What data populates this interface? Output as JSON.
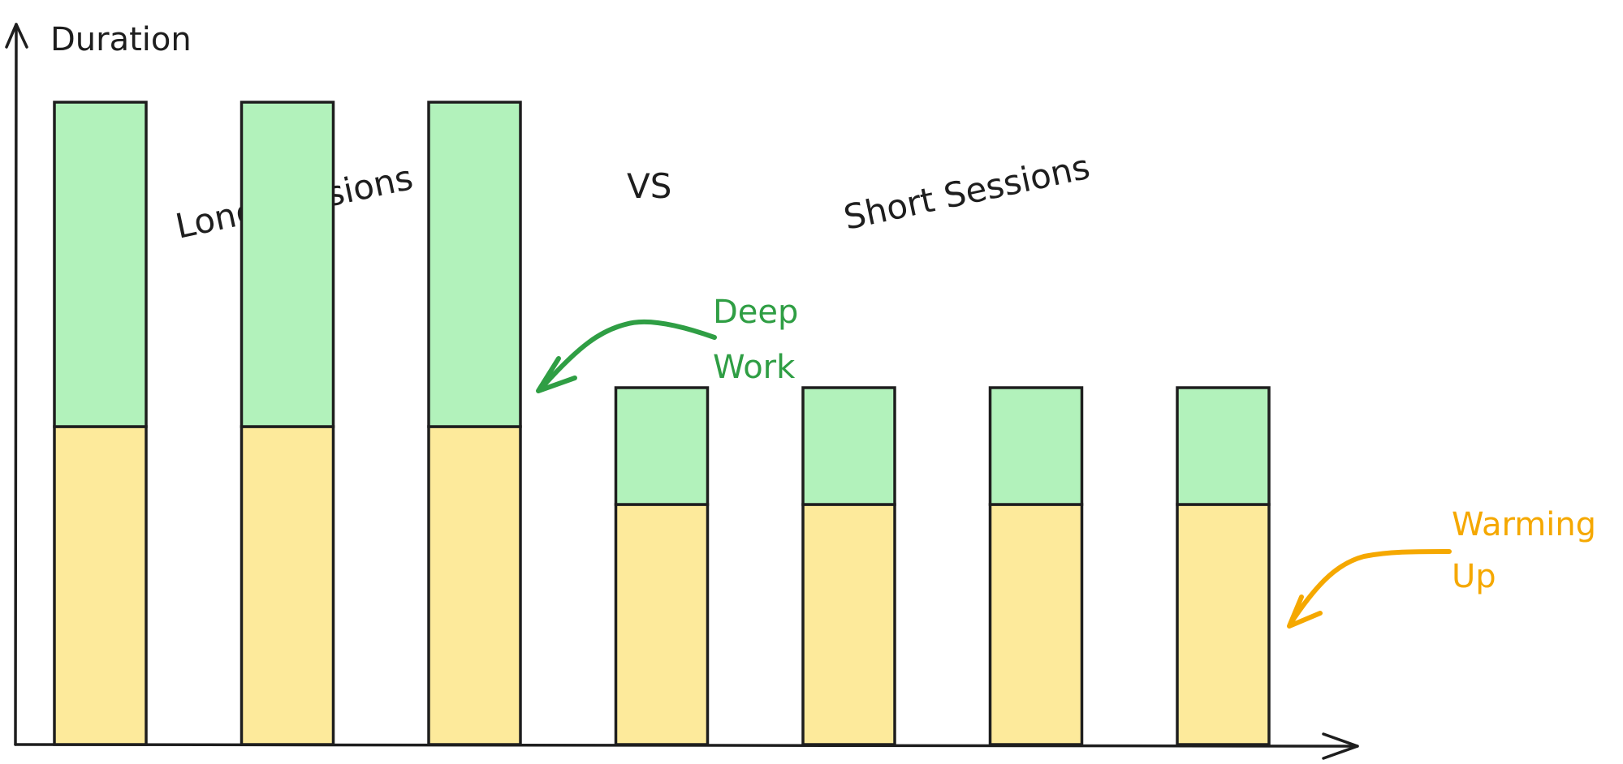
{
  "chart_data": {
    "type": "bar",
    "stacked": true,
    "ylabel": "Duration",
    "xlabel": "",
    "title": "",
    "group_labels": {
      "left": "Long Sessions",
      "middle": "VS",
      "right": "Short Sessions"
    },
    "categories": [
      "",
      "",
      "",
      "",
      "",
      "",
      ""
    ],
    "ylim": [
      0,
      100
    ],
    "series": [
      {
        "name": "Warming Up",
        "color": "#fdea9b",
        "values": [
          49,
          49,
          49,
          37,
          37,
          37,
          37
        ]
      },
      {
        "name": "Deep Work",
        "color": "#b2f2bb",
        "values": [
          50,
          50,
          50,
          18,
          18,
          18,
          18
        ]
      }
    ],
    "annotations": [
      {
        "lines": [
          "Deep",
          "Work"
        ],
        "color": "#2f9e44"
      },
      {
        "lines": [
          "Warming",
          "Up"
        ],
        "color": "#f5a800"
      }
    ],
    "grid": false,
    "legend": "none"
  }
}
